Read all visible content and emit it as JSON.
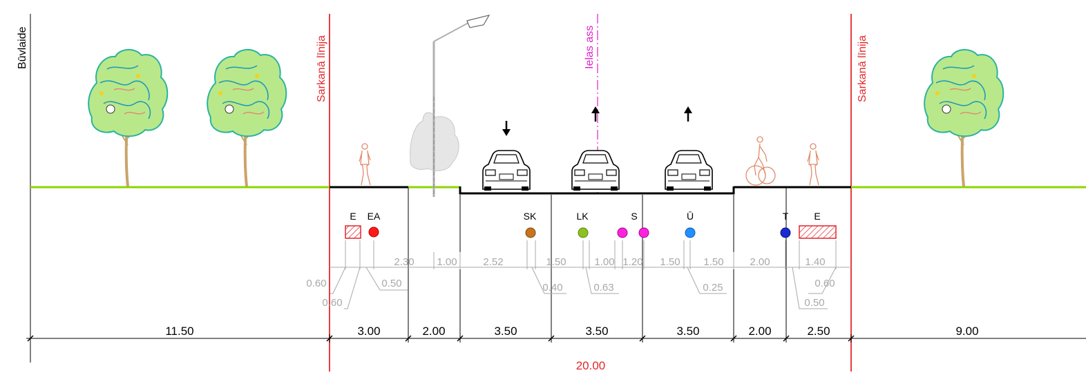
{
  "labels": {
    "building_line": "Būvlaide",
    "red_line": "Sarkanā līnija",
    "street_axis": "Ielas ass"
  },
  "utilities": {
    "e_left": "E",
    "ea": "EA",
    "sk": "SK",
    "lk": "LK",
    "s": "S",
    "u": "Ū",
    "t": "T",
    "e_right": "E"
  },
  "dims_top": {
    "d230": "2.30",
    "d100a": "1.00",
    "d252": "2.52",
    "d150a": "1.50",
    "d100b": "1.00",
    "d120": "1.20",
    "d150b": "1.50",
    "d150c": "1.50",
    "d200": "2.00",
    "d140": "1.40"
  },
  "dims_callout": {
    "d060a": "0.60",
    "d060b": "0.60",
    "d050a": "0.50",
    "d040": "0.40",
    "d063": "0.63",
    "d025": "0.25",
    "d060c": "0.60",
    "d050b": "0.50"
  },
  "dims_bottom": {
    "s1": "11.50",
    "s2": "3.00",
    "s3": "2.00",
    "s4": "3.50",
    "s5": "3.50",
    "s6": "3.50",
    "s7": "2.00",
    "s8": "2.50",
    "s9": "9.00"
  },
  "total_width": "20.00",
  "colors": {
    "red_line": "#e3262b",
    "axis": "#e020c8",
    "grass": "#8fd400",
    "dim_gray": "#a8a8a8",
    "ea": "#ff1a1a",
    "sk": "#c8741e",
    "lk": "#8cc21e",
    "s": "#ff22dd",
    "u": "#1e90ff",
    "t": "#1a2ad6"
  },
  "icons": {
    "tree": "tree-icon",
    "car": "car-icon",
    "pedestrian": "pedestrian-icon",
    "cyclist": "cyclist-icon",
    "lamp": "street-lamp-icon",
    "arrow": "direction-arrow-icon"
  }
}
